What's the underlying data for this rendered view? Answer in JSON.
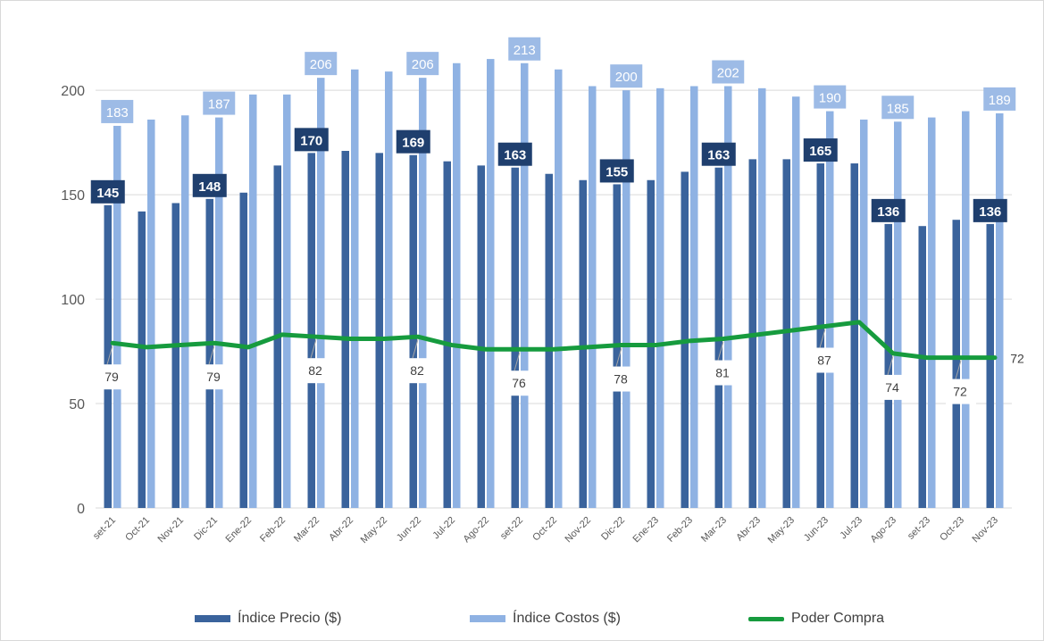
{
  "chart_data": {
    "type": "bar",
    "categories": [
      "set-21",
      "Oct-21",
      "Nov-21",
      "Dic-21",
      "Ene-22",
      "Feb-22",
      "Mar-22",
      "Abr-22",
      "May-22",
      "Jun-22",
      "Jul-22",
      "Ago-22",
      "set-22",
      "Oct-22",
      "Nov-22",
      "Dic-22",
      "Ene-23",
      "Feb-23",
      "Mar-23",
      "Abr-23",
      "May-23",
      "Jun-23",
      "Jul-23",
      "Ago-23",
      "set-23",
      "Oct-23",
      "Nov-23"
    ],
    "series": [
      {
        "name": "Índice Precio ($)",
        "type": "bar",
        "color": "#3a639c",
        "values": [
          145,
          142,
          146,
          148,
          151,
          164,
          170,
          171,
          170,
          169,
          166,
          164,
          163,
          160,
          157,
          155,
          157,
          161,
          163,
          167,
          167,
          165,
          165,
          136,
          135,
          138,
          136
        ],
        "labels": [
          "145",
          "",
          "",
          "148",
          "",
          "",
          "170",
          "",
          "",
          "169",
          "",
          "",
          "163",
          "",
          "",
          "155",
          "",
          "",
          "163",
          "",
          "",
          "165",
          "",
          "136",
          "",
          "",
          "136"
        ]
      },
      {
        "name": "Índice Costos ($)",
        "type": "bar",
        "color": "#8fb2e3",
        "values": [
          183,
          186,
          188,
          187,
          198,
          198,
          206,
          210,
          209,
          206,
          213,
          215,
          213,
          210,
          202,
          200,
          201,
          202,
          202,
          201,
          197,
          190,
          186,
          185,
          187,
          190,
          189
        ],
        "labels": [
          "183",
          "",
          "",
          "187",
          "",
          "",
          "206",
          "",
          "",
          "206",
          "",
          "",
          "213",
          "",
          "",
          "200",
          "",
          "",
          "202",
          "",
          "",
          "190",
          "",
          "185",
          "",
          "",
          "189"
        ]
      },
      {
        "name": "Poder Compra",
        "type": "line",
        "color": "#169b3e",
        "values": [
          79,
          77,
          78,
          79,
          77,
          83,
          82,
          81,
          81,
          82,
          78,
          76,
          76,
          76,
          77,
          78,
          78,
          80,
          81,
          83,
          85,
          87,
          89,
          74,
          72,
          72,
          72
        ],
        "labels": [
          "79",
          "",
          "",
          "79",
          "",
          "",
          "82",
          "",
          "",
          "82",
          "",
          "",
          "76",
          "",
          "",
          "78",
          "",
          "",
          "81",
          "",
          "",
          "87",
          "",
          "74",
          "",
          "72",
          "72"
        ]
      }
    ],
    "yticks": [
      "0",
      "50",
      "100",
      "150",
      "200"
    ],
    "ylim": [
      0,
      230
    ],
    "grid": true,
    "legend_position": "bottom"
  }
}
